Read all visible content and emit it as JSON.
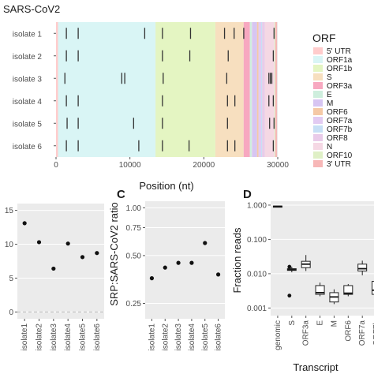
{
  "colors": {
    "grid_bg": "#ebebeb",
    "point": "#111111",
    "tick_mark": "#333333",
    "dashed_ref": "#bbbbbb"
  },
  "chart_data": [
    {
      "id": "A",
      "type": "event-track",
      "title": "SARS-CoV2",
      "xlabel": "Position (nt)",
      "xlim": [
        0,
        30000
      ],
      "xticks": [
        0,
        10000,
        20000,
        30000
      ],
      "rows": [
        "isolate 1",
        "isolate 2",
        "isolate 3",
        "isolate 4",
        "isolate 5",
        "isolate 6"
      ],
      "legend_title": "ORF",
      "orf_regions": [
        {
          "name": "5' UTR",
          "start": 0,
          "end": 265,
          "color": "#ffcccc"
        },
        {
          "name": "ORF1a",
          "start": 266,
          "end": 13483,
          "color": "#d9f5f5"
        },
        {
          "name": "ORF1b",
          "start": 13468,
          "end": 21555,
          "color": "#e4f5c2"
        },
        {
          "name": "S",
          "start": 21563,
          "end": 25384,
          "color": "#f7dfbf"
        },
        {
          "name": "ORF3a",
          "start": 25393,
          "end": 26220,
          "color": "#f7a8c0"
        },
        {
          "name": "E",
          "start": 26245,
          "end": 26472,
          "color": "#ceeedd"
        },
        {
          "name": "M",
          "start": 26523,
          "end": 27191,
          "color": "#d7c5f2"
        },
        {
          "name": "ORF6",
          "start": 27202,
          "end": 27387,
          "color": "#f5c9a6"
        },
        {
          "name": "ORF7a",
          "start": 27394,
          "end": 27759,
          "color": "#e2cbf2"
        },
        {
          "name": "ORF7b",
          "start": 27756,
          "end": 27887,
          "color": "#c7dff5"
        },
        {
          "name": "ORF8",
          "start": 27894,
          "end": 28259,
          "color": "#e9cbe9"
        },
        {
          "name": "N",
          "start": 28274,
          "end": 29533,
          "color": "#f5d8e4"
        },
        {
          "name": "ORF10",
          "start": 29558,
          "end": 29674,
          "color": "#dff0c6"
        },
        {
          "name": "3' UTR",
          "start": 29675,
          "end": 29903,
          "color": "#f7b7b7"
        }
      ],
      "events": [
        [
          1400,
          3000,
          12000,
          14400,
          18200,
          22800,
          24100,
          25400,
          29500
        ],
        [
          1400,
          3000,
          14400,
          18100,
          23300,
          29400
        ],
        [
          1200,
          8900,
          9300,
          14500,
          23100,
          28800,
          29000,
          29200
        ],
        [
          1400,
          3000,
          14400,
          23200,
          24200,
          28800,
          29400
        ],
        [
          1500,
          3000,
          10500,
          14400,
          23200,
          28900,
          29500
        ],
        [
          1400,
          3000,
          11200,
          14400,
          18000,
          23200,
          24200,
          29400
        ]
      ]
    },
    {
      "id": "B",
      "type": "scatter",
      "categories": [
        "isolate1",
        "isolate2",
        "isolate3",
        "isolate4",
        "isolate5",
        "isolate6"
      ],
      "values": [
        13.1,
        10.3,
        6.4,
        10.1,
        8.1,
        8.7
      ],
      "ylim": [
        -1,
        16
      ],
      "yticks": [
        0,
        5,
        10,
        15
      ],
      "hline": 0,
      "grid": true
    },
    {
      "id": "C",
      "type": "scatter",
      "ylabel": "SRP:SARS-CoV2 ratio",
      "yscale": "log",
      "categories": [
        "isolate1",
        "isolate2",
        "isolate3",
        "isolate4",
        "isolate5",
        "isolate6"
      ],
      "values": [
        0.36,
        0.42,
        0.45,
        0.45,
        0.6,
        0.38
      ],
      "ylim": [
        0.2,
        1.1
      ],
      "yticks": [
        0.25,
        0.5,
        0.75,
        1.0
      ],
      "ytick_labels": [
        "0.25",
        "0.50",
        "0.75",
        "1.00"
      ],
      "grid": true
    },
    {
      "id": "D",
      "type": "box",
      "xlabel": "Transcript",
      "ylabel": "Fraction reads",
      "yscale": "log",
      "ylim": [
        0.0006,
        1.3
      ],
      "yticks": [
        0.001,
        0.01,
        0.1,
        1
      ],
      "ytick_labels": [
        "0.001",
        "0.010",
        "0.100",
        "1.000"
      ],
      "categories": [
        "genomic",
        "S",
        "ORF3a",
        "E",
        "M",
        "ORF6",
        "ORF7a",
        "ORF7b"
      ],
      "boxes": [
        {
          "q1": 0.9,
          "median": 0.92,
          "q3": 0.94,
          "lo": 0.9,
          "hi": 0.94,
          "outliers": []
        },
        {
          "q1": 0.0125,
          "median": 0.013,
          "q3": 0.014,
          "lo": 0.011,
          "hi": 0.016,
          "outliers": [
            0.0023,
            0.016
          ]
        },
        {
          "q1": 0.015,
          "median": 0.019,
          "q3": 0.023,
          "lo": 0.012,
          "hi": 0.035,
          "outliers": []
        },
        {
          "q1": 0.0025,
          "median": 0.0028,
          "q3": 0.0045,
          "lo": 0.0022,
          "hi": 0.0055,
          "outliers": []
        },
        {
          "q1": 0.0015,
          "median": 0.0021,
          "q3": 0.0028,
          "lo": 0.0013,
          "hi": 0.0035,
          "outliers": []
        },
        {
          "q1": 0.0025,
          "median": 0.0027,
          "q3": 0.0045,
          "lo": 0.0022,
          "hi": 0.005,
          "outliers": []
        },
        {
          "q1": 0.012,
          "median": 0.014,
          "q3": 0.019,
          "lo": 0.009,
          "hi": 0.024,
          "outliers": []
        },
        {
          "q1": 0.0025,
          "median": 0.0033,
          "q3": 0.006,
          "lo": 0.0015,
          "hi": 0.009,
          "outliers": []
        }
      ]
    }
  ],
  "panel_letters": {
    "c": "C",
    "d": "D"
  }
}
